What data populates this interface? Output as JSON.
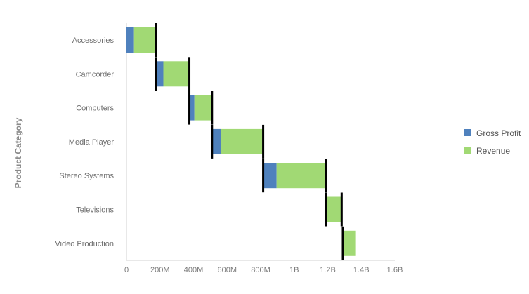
{
  "chart_data": {
    "type": "bar",
    "orientation": "horizontal-waterfall",
    "title": "",
    "xlabel": "",
    "ylabel": "Product Category",
    "xlim": [
      0,
      1600000000
    ],
    "x_ticks": [
      0,
      200000000,
      400000000,
      600000000,
      800000000,
      1000000000,
      1200000000,
      1400000000,
      1600000000
    ],
    "x_tick_labels": [
      "0",
      "200M",
      "400M",
      "600M",
      "800M",
      "1B",
      "1.2B",
      "1.4B",
      "1.6B"
    ],
    "categories": [
      "Accessories",
      "Camcorder",
      "Computers",
      "Media Player",
      "Stereo Systems",
      "Televisions",
      "Video Production"
    ],
    "start": [
      0,
      175000000,
      375000000,
      510000000,
      815000000,
      1190000000,
      1290000000
    ],
    "series": [
      {
        "name": "Gross Profit",
        "color": "#4f81bd",
        "values": [
          45000000,
          45000000,
          30000000,
          55000000,
          80000000,
          8000000,
          8000000
        ]
      },
      {
        "name": "Revenue",
        "color": "#a1d974",
        "values": [
          130000000,
          155000000,
          105000000,
          250000000,
          295000000,
          85000000,
          70000000
        ]
      }
    ],
    "separator_color": "#000000",
    "grid": false,
    "legend": [
      "Gross Profit",
      "Revenue"
    ],
    "legend_position": "right"
  }
}
